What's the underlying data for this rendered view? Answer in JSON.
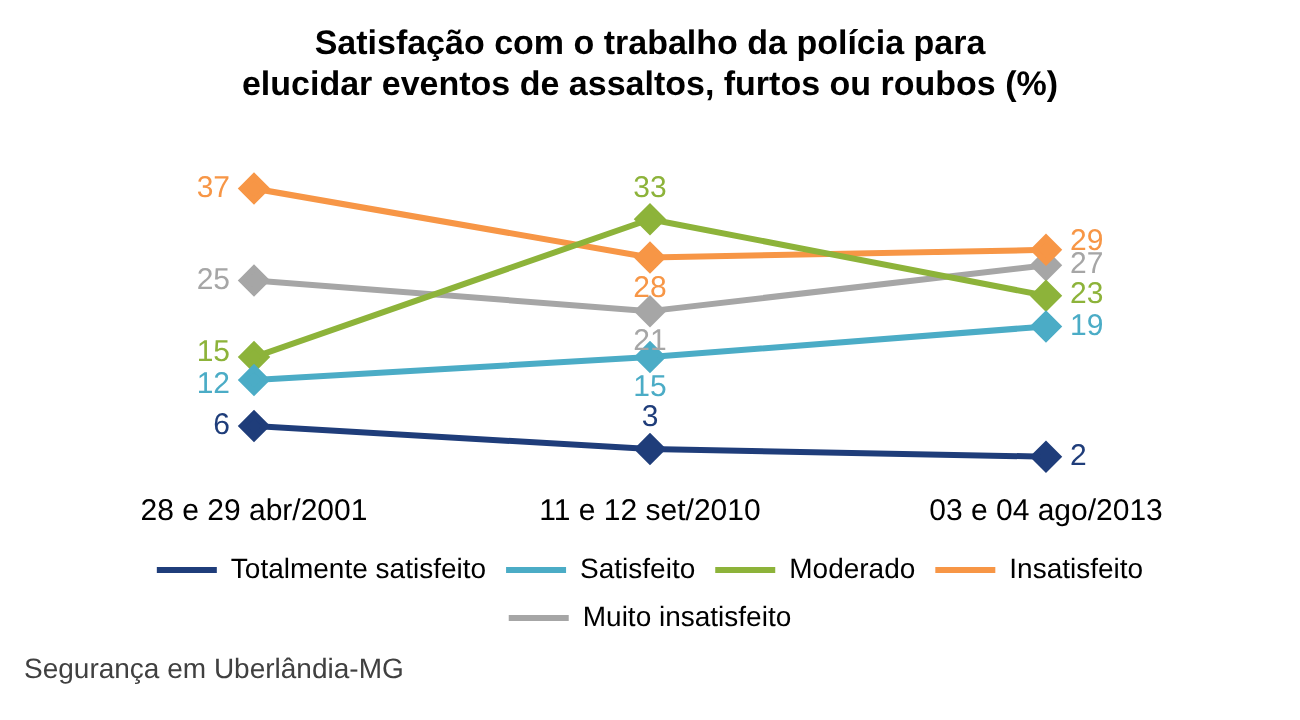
{
  "chart_data": {
    "type": "line",
    "title": "Satisfação com o trabalho da polícia para elucidar eventos de assaltos, furtos ou roubos (%)",
    "categories": [
      "28 e 29 abr/2001",
      "11 e 12 set/2010",
      "03 e 04 ago/2013"
    ],
    "series": [
      {
        "name": "Totalmente satisfeito",
        "color": "#1f3d7a",
        "values": [
          6,
          3,
          2
        ]
      },
      {
        "name": "Satisfeito",
        "color": "#4bacc6",
        "values": [
          12,
          15,
          19
        ]
      },
      {
        "name": "Moderado",
        "color": "#8db33a",
        "values": [
          15,
          33,
          23
        ]
      },
      {
        "name": "Insatisfeito",
        "color": "#f79646",
        "values": [
          37,
          28,
          29
        ]
      },
      {
        "name": "Muito insatisfeito",
        "color": "#a6a6a6",
        "values": [
          25,
          21,
          27
        ]
      }
    ],
    "data_labels": true,
    "grid": false,
    "legend": "bottom",
    "marker": "diamond",
    "line_style": "solid",
    "tick_labels": "x",
    "annotations": [
      "Segurança em Uberlândia-MG"
    ]
  }
}
